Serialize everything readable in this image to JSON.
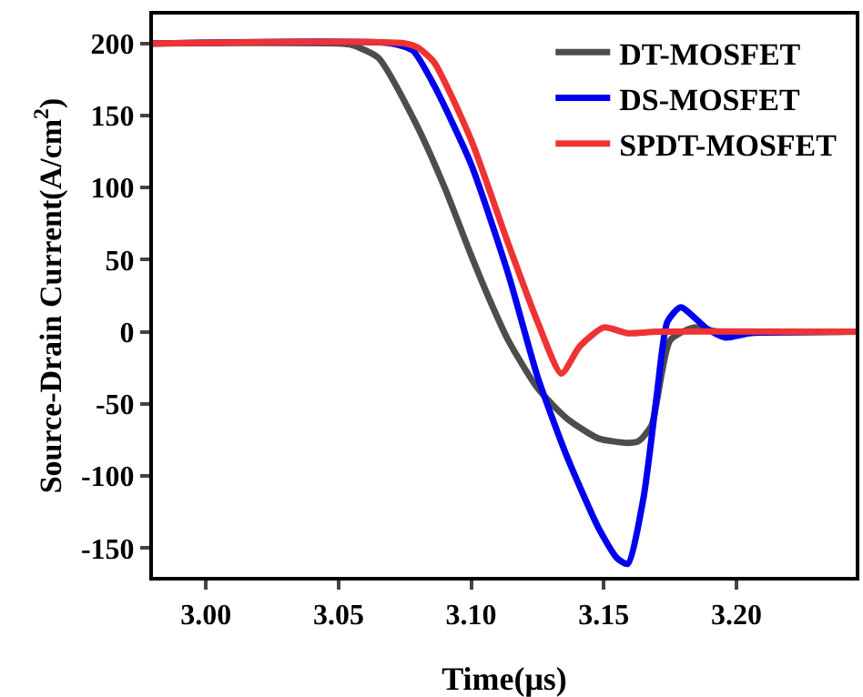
{
  "chart_data": {
    "type": "line",
    "xlabel": "Time(μs)",
    "ylabel": "Source-Drain Current(A/cm$^{2}$)",
    "xlim": [
      2.98,
      3.245
    ],
    "ylim": [
      -170,
      220
    ],
    "xticks": [
      {
        "value": 3.0,
        "label": "3.00"
      },
      {
        "value": 3.05,
        "label": "3.05"
      },
      {
        "value": 3.1,
        "label": "3.10"
      },
      {
        "value": 3.15,
        "label": "3.15"
      },
      {
        "value": 3.2,
        "label": "3.20"
      }
    ],
    "yticks": [
      -150,
      -100,
      -50,
      0,
      50,
      100,
      150,
      200
    ],
    "grid": false,
    "legend": "top right",
    "marker": "none",
    "line_style": "solid",
    "series": [
      {
        "name": "DT-MOSFET",
        "color": "#4d4d4d",
        "x": [
          2.98,
          3.05,
          3.055,
          3.065,
          3.079,
          3.09,
          3.1,
          3.107,
          3.114,
          3.125,
          3.136,
          3.148,
          3.159,
          3.163,
          3.168,
          3.175,
          3.184,
          3.193,
          3.245
        ],
        "values": [
          200,
          200,
          199,
          190,
          145,
          100,
          53,
          22,
          -6,
          -39,
          -60,
          -74,
          -77,
          -76,
          -65,
          -6,
          3,
          0,
          0
        ]
      },
      {
        "name": "DS-MOSFET",
        "color": "#0000ee",
        "x": [
          2.98,
          3.07,
          3.078,
          3.086,
          3.1,
          3.114,
          3.125,
          3.136,
          3.148,
          3.155,
          3.159,
          3.165,
          3.17,
          3.174,
          3.179,
          3.189,
          3.196,
          3.205,
          3.245
        ],
        "values": [
          200,
          200,
          195,
          171,
          116,
          40,
          -31,
          -86,
          -136,
          -157,
          -161,
          -115,
          -44,
          7,
          17,
          2,
          -4,
          -1,
          0
        ]
      },
      {
        "name": "SPDT-MOSFET",
        "color": "#ee3333",
        "x": [
          2.98,
          3.075,
          3.08,
          3.086,
          3.1,
          3.114,
          3.125,
          3.134,
          3.141,
          3.15,
          3.159,
          3.17,
          3.245
        ],
        "values": [
          200,
          200,
          197,
          187,
          133,
          61,
          7,
          -29,
          -10,
          3,
          -1,
          0,
          0
        ]
      }
    ]
  }
}
